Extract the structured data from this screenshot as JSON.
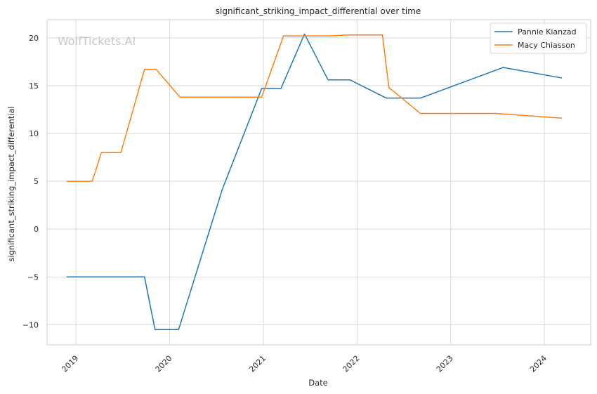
{
  "watermark": "WolfTickets.AI",
  "chart_data": {
    "type": "line",
    "title": "significant_striking_impact_differential over time",
    "xlabel": "Date",
    "ylabel": "significant_striking_impact_differential",
    "x_range": [
      "2018-09-10",
      "2024-06-30"
    ],
    "ylim": [
      -12.1,
      21.9
    ],
    "x_ticks": [
      {
        "date": "2019-01-01",
        "label": "2019"
      },
      {
        "date": "2020-01-01",
        "label": "2020"
      },
      {
        "date": "2021-01-01",
        "label": "2021"
      },
      {
        "date": "2022-01-01",
        "label": "2022"
      },
      {
        "date": "2023-01-01",
        "label": "2023"
      },
      {
        "date": "2024-01-01",
        "label": "2024"
      }
    ],
    "y_ticks": [
      -10,
      -5,
      0,
      5,
      10,
      15,
      20
    ],
    "y_tick_labels": [
      "−10",
      "−5",
      "0",
      "5",
      "10",
      "15",
      "20"
    ],
    "grid": true,
    "legend_position": "top-right",
    "series": [
      {
        "name": "Pannie Kianzad",
        "color": "#1f77b4",
        "points": [
          {
            "x": "2018-11-25",
            "y": -5.0
          },
          {
            "x": "2019-09-25",
            "y": -5.0
          },
          {
            "x": "2019-11-05",
            "y": -10.5
          },
          {
            "x": "2020-02-05",
            "y": -10.5
          },
          {
            "x": "2020-07-25",
            "y": 4.2
          },
          {
            "x": "2020-12-25",
            "y": 14.7
          },
          {
            "x": "2021-03-10",
            "y": 14.7
          },
          {
            "x": "2021-06-10",
            "y": 20.4
          },
          {
            "x": "2021-09-10",
            "y": 15.6
          },
          {
            "x": "2021-12-05",
            "y": 15.6
          },
          {
            "x": "2022-04-25",
            "y": 13.7
          },
          {
            "x": "2022-09-05",
            "y": 13.7
          },
          {
            "x": "2023-07-25",
            "y": 16.9
          },
          {
            "x": "2024-03-10",
            "y": 15.8
          }
        ]
      },
      {
        "name": "Macy Chiasson",
        "color": "#ff7f0e",
        "points": [
          {
            "x": "2018-11-25",
            "y": 5.0
          },
          {
            "x": "2019-03-05",
            "y": 5.0
          },
          {
            "x": "2019-04-10",
            "y": 8.0
          },
          {
            "x": "2019-06-25",
            "y": 8.0
          },
          {
            "x": "2019-09-25",
            "y": 16.7
          },
          {
            "x": "2019-11-10",
            "y": 16.7
          },
          {
            "x": "2020-02-10",
            "y": 13.8
          },
          {
            "x": "2020-12-25",
            "y": 13.8
          },
          {
            "x": "2021-03-20",
            "y": 20.2
          },
          {
            "x": "2021-09-10",
            "y": 20.2
          },
          {
            "x": "2021-12-05",
            "y": 20.3
          },
          {
            "x": "2022-04-10",
            "y": 20.3
          },
          {
            "x": "2022-05-05",
            "y": 14.8
          },
          {
            "x": "2022-09-05",
            "y": 12.1
          },
          {
            "x": "2023-06-25",
            "y": 12.1
          },
          {
            "x": "2024-03-10",
            "y": 11.6
          }
        ]
      }
    ]
  }
}
